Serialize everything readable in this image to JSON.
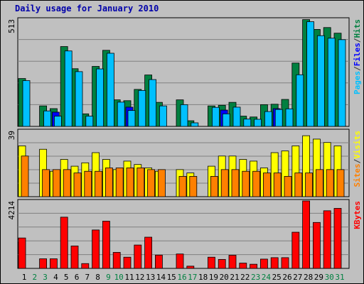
{
  "title": "Daily usage for January 2010",
  "chart_data": [
    {
      "type": "bar",
      "panel": "pages-files-hits",
      "ymax_label": "513",
      "ylim": [
        0,
        513
      ],
      "grid": true,
      "legend_labels": [
        "Pages",
        "/",
        "Files",
        "/",
        "Hits"
      ],
      "legend_colors": [
        "#00c0ff",
        "#333333",
        "#0000ff",
        "#333333",
        "#008040"
      ],
      "legend_placement": "right",
      "categories": [
        "1",
        "2",
        "3",
        "4",
        "5",
        "6",
        "7",
        "8",
        "9",
        "10",
        "11",
        "12",
        "13",
        "14",
        "15",
        "16",
        "17",
        "18",
        "19",
        "20",
        "21",
        "22",
        "23",
        "24",
        "25",
        "26",
        "27",
        "28",
        "29",
        "30",
        "31"
      ],
      "series": [
        {
          "name": "Hits",
          "color": "#008040",
          "values": [
            229,
            0,
            98,
            85,
            382,
            276,
            60,
            287,
            364,
            127,
            123,
            177,
            246,
            115,
            0,
            127,
            27,
            0,
            98,
            101,
            115,
            49,
            45,
            104,
            106,
            129,
            303,
            511,
            464,
            473,
            446
          ]
        },
        {
          "name": "Files",
          "color": "#0000ff",
          "values": [
            0,
            0,
            0,
            68,
            0,
            0,
            0,
            0,
            0,
            0,
            92,
            0,
            0,
            0,
            0,
            0,
            0,
            0,
            0,
            78,
            0,
            0,
            0,
            0,
            85,
            0,
            0,
            0,
            0,
            0,
            0
          ]
        },
        {
          "name": "Pages",
          "color": "#00c0ff",
          "values": [
            219,
            0,
            74,
            49,
            361,
            262,
            49,
            275,
            350,
            116,
            76,
            172,
            224,
            98,
            0,
            104,
            17,
            0,
            91,
            60,
            92,
            35,
            34,
            71,
            81,
            84,
            247,
            501,
            434,
            422,
            415
          ]
        }
      ]
    },
    {
      "type": "bar",
      "panel": "sites-visits",
      "ymax_label": "39",
      "ylim": [
        0,
        39
      ],
      "grid": true,
      "legend_labels": [
        "Sites",
        "/",
        "Visits"
      ],
      "legend_colors": [
        "#ff8000",
        "#333333",
        "#ffff00"
      ],
      "legend_placement": "right",
      "categories": [
        "1",
        "2",
        "3",
        "4",
        "5",
        "6",
        "7",
        "8",
        "9",
        "10",
        "11",
        "12",
        "13",
        "14",
        "15",
        "16",
        "17",
        "18",
        "19",
        "20",
        "21",
        "22",
        "23",
        "24",
        "25",
        "26",
        "27",
        "28",
        "29",
        "30",
        "31"
      ],
      "series": [
        {
          "name": "Visits",
          "color": "#ffff00",
          "values": [
            30,
            0,
            28,
            15,
            22,
            18,
            20,
            26,
            22,
            16,
            21,
            19,
            17,
            15,
            0,
            16,
            14,
            0,
            18,
            24,
            24,
            22,
            21,
            17,
            26,
            27,
            30,
            36,
            34,
            32,
            30
          ]
        },
        {
          "name": "Sites",
          "color": "#ff8000",
          "values": [
            24,
            0,
            16,
            16,
            16,
            14,
            15,
            15,
            17,
            17,
            17,
            17,
            16,
            16,
            0,
            12,
            12,
            0,
            12,
            16,
            16,
            15,
            15,
            14,
            14,
            12,
            14,
            14,
            16,
            16,
            16
          ]
        }
      ]
    },
    {
      "type": "bar",
      "panel": "kbytes",
      "ymax_label": "4214",
      "ylim": [
        0,
        4214
      ],
      "grid": true,
      "legend_labels": [
        "KBytes"
      ],
      "legend_colors": [
        "#ff0000"
      ],
      "legend_placement": "right",
      "categories": [
        "1",
        "2",
        "3",
        "4",
        "5",
        "6",
        "7",
        "8",
        "9",
        "10",
        "11",
        "12",
        "13",
        "14",
        "15",
        "16",
        "17",
        "18",
        "19",
        "20",
        "21",
        "22",
        "23",
        "24",
        "25",
        "26",
        "27",
        "28",
        "29",
        "30",
        "31"
      ],
      "series": [
        {
          "name": "KBytes",
          "color": "#ff0000",
          "values": [
            1900,
            0,
            600,
            600,
            3200,
            1400,
            300,
            2400,
            2950,
            1000,
            700,
            1460,
            1950,
            830,
            0,
            900,
            140,
            0,
            700,
            560,
            820,
            330,
            260,
            580,
            670,
            670,
            2260,
            4214,
            2870,
            3600,
            3750
          ]
        }
      ]
    }
  ],
  "x_labels": [
    "1",
    "2",
    "3",
    "4",
    "5",
    "6",
    "7",
    "8",
    "9",
    "10",
    "11",
    "12",
    "13",
    "14",
    "15",
    "16",
    "17",
    "18",
    "19",
    "20",
    "21",
    "22",
    "23",
    "24",
    "25",
    "26",
    "27",
    "28",
    "29",
    "30",
    "31"
  ],
  "weekend_days": [
    2,
    3,
    9,
    10,
    16,
    17,
    23,
    24,
    30,
    31
  ],
  "weekday_label_color": "#000000",
  "weekend_label_color": "#008040"
}
